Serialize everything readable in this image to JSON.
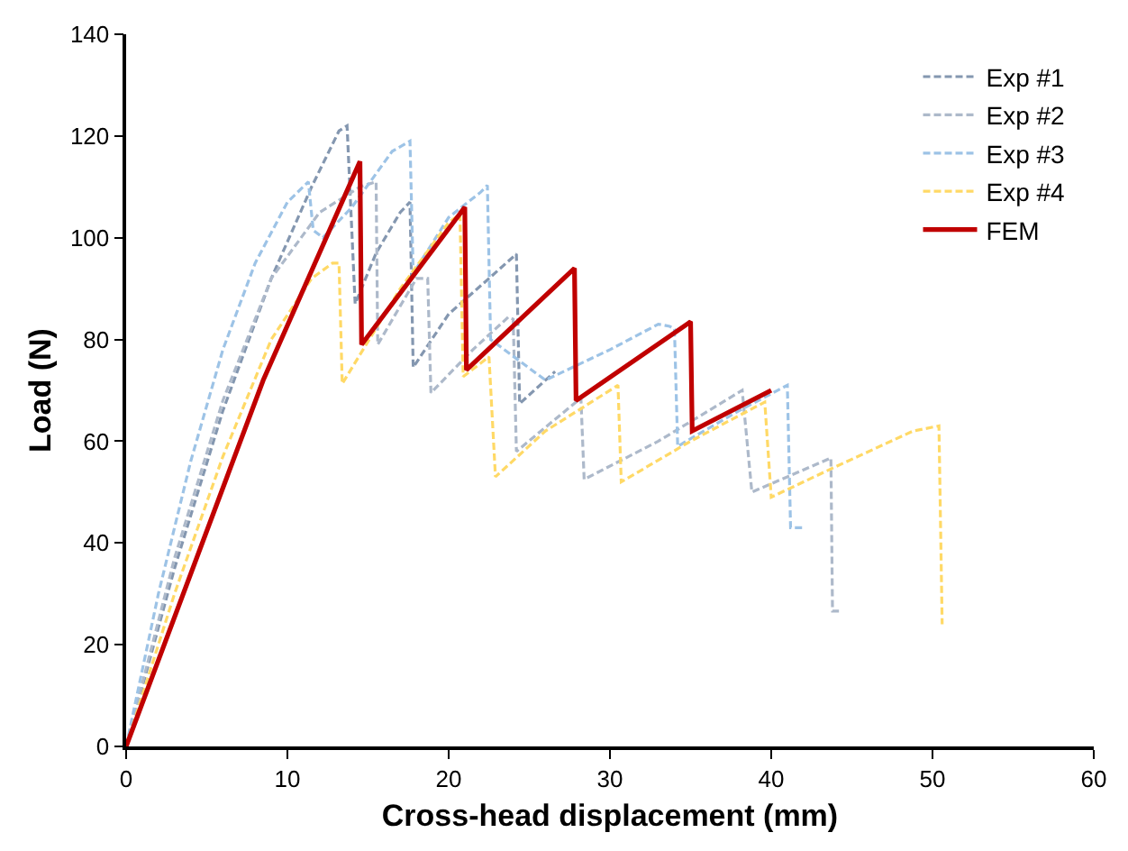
{
  "chart_data": {
    "type": "line",
    "xlabel": "Cross-head displacement (mm)",
    "ylabel": "Load (N)",
    "xlim": [
      0,
      60
    ],
    "xticks": [
      0,
      10,
      20,
      30,
      40,
      50,
      60
    ],
    "ylim": [
      0,
      140
    ],
    "yticks": [
      0,
      20,
      40,
      60,
      80,
      100,
      120,
      140
    ],
    "legend": "top right",
    "marker": "none",
    "series": [
      {
        "name": "Exp #1",
        "color": "#8497b0",
        "line_style": "dashed",
        "x": [
          0,
          3,
          6,
          9,
          11.5,
          13.2,
          13.7,
          14.2,
          15.5,
          17.0,
          17.6,
          17.8,
          20,
          22.5,
          24.2,
          24.4,
          26.6
        ],
        "values": [
          0,
          35,
          66,
          92,
          110,
          121,
          122,
          87,
          97,
          105,
          107,
          74.5,
          85,
          92,
          96.8,
          67.4,
          73.7
        ]
      },
      {
        "name": "Exp #2",
        "color": "#adb9ca",
        "line_style": "dashed",
        "x": [
          0,
          3,
          6,
          9,
          12,
          14.5,
          15.5,
          15.6,
          18.0,
          18.7,
          18.9,
          21.5,
          23.7,
          24.0,
          24.2,
          28.2,
          28.4,
          33,
          38.2,
          38.8,
          41,
          43.7,
          43.8,
          44.2
        ],
        "values": [
          0,
          37,
          68,
          92,
          105,
          110,
          111,
          79,
          92,
          92,
          69.5,
          78,
          84.4,
          84,
          58,
          68.5,
          52.5,
          60,
          70,
          50,
          53,
          56.7,
          26.6,
          26.6
        ]
      },
      {
        "name": "Exp #3",
        "color": "#9dc3e6",
        "line_style": "dashed",
        "x": [
          0,
          2,
          4,
          6,
          8,
          10,
          11.3,
          11.6,
          12.2,
          14,
          16.5,
          17.6,
          17.8,
          20,
          22.0,
          22.4,
          22.6,
          26,
          30,
          33,
          33.7,
          34.0,
          34.2,
          38,
          41.0,
          41.2,
          42.0
        ],
        "values": [
          0,
          30,
          56,
          78,
          95,
          107,
          111,
          101.5,
          100,
          106,
          117,
          119,
          93,
          104,
          109,
          110.3,
          80,
          72,
          78,
          83,
          82.6,
          82,
          59,
          66,
          71,
          43,
          43
        ]
      },
      {
        "name": "Exp #4",
        "color": "#ffd966",
        "line_style": "dashed",
        "x": [
          0,
          3,
          6,
          9,
          11.5,
          12.8,
          13.2,
          13.4,
          17,
          20.0,
          20.7,
          20.9,
          22.5,
          22.9,
          26,
          30.5,
          30.7,
          35,
          39.6,
          40.0,
          44,
          48.8,
          50.4,
          50.6
        ],
        "values": [
          0,
          30,
          57,
          80,
          92,
          95,
          95,
          71.3,
          90,
          103,
          104.6,
          72.7,
          76.6,
          53,
          62,
          71,
          52,
          60,
          67.7,
          49,
          55,
          62,
          63,
          24
        ]
      },
      {
        "name": "FEM",
        "color": "#c00000",
        "line_style": "solid",
        "x": [
          0,
          8.5,
          14.5,
          14.6,
          21.0,
          21.1,
          27.8,
          27.9,
          35.0,
          35.1,
          40.0
        ],
        "values": [
          0,
          72,
          115,
          79,
          106,
          74,
          94,
          68,
          83.5,
          62,
          70
        ]
      }
    ]
  }
}
